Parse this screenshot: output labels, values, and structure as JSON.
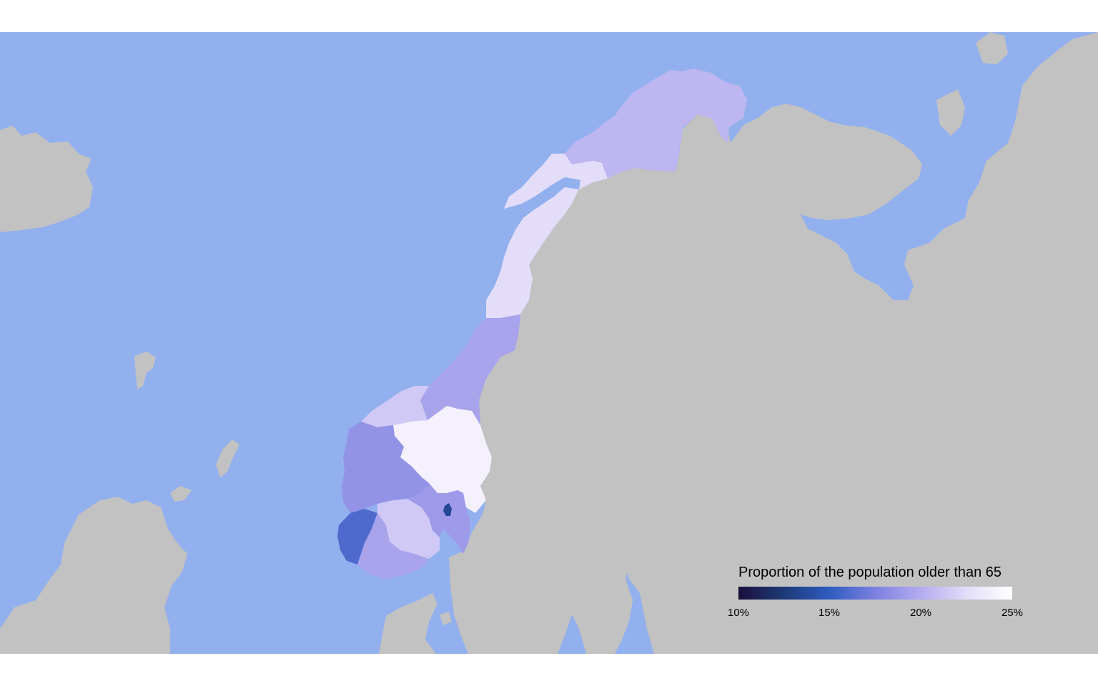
{
  "colors": {
    "sea": "#92b0ee",
    "land": "#c2c2c2",
    "background": "#ffffff",
    "scale": [
      "#1b0f3b",
      "#1d3a78",
      "#2f5cc0",
      "#7c80e0",
      "#b4acef",
      "#e3ddf9",
      "#ffffff"
    ]
  },
  "legend": {
    "title": "Proportion of the population older than 65",
    "ticks": [
      "10%",
      "15%",
      "20%",
      "25%"
    ]
  },
  "regions": [
    {
      "id": "finnmark",
      "value": 20.5
    },
    {
      "id": "troms",
      "value": 22.5
    },
    {
      "id": "nordland",
      "value": 22.5
    },
    {
      "id": "trondelag",
      "value": 19.5
    },
    {
      "id": "more-og-romsdal",
      "value": 21.5
    },
    {
      "id": "innlandet",
      "value": 24.0
    },
    {
      "id": "vestland",
      "value": 18.5
    },
    {
      "id": "rogaland",
      "value": 16.0
    },
    {
      "id": "agder",
      "value": 19.5
    },
    {
      "id": "vestfold-og-telemark",
      "value": 21.5
    },
    {
      "id": "viken",
      "value": 19.0
    },
    {
      "id": "oslo",
      "value": 13.5
    }
  ]
}
